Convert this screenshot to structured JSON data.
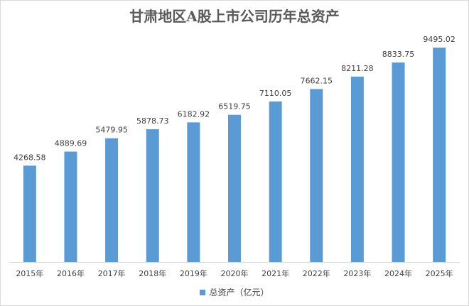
{
  "chart_data": {
    "type": "bar",
    "title": "甘肃地区A股上市公司历年总资产",
    "categories": [
      "2015年",
      "2016年",
      "2017年",
      "2018年",
      "2019年",
      "2020年",
      "2021年",
      "2022年",
      "2023年",
      "2024年",
      "2025年"
    ],
    "series": [
      {
        "name": "总资产（亿元）",
        "values": [
          4268.58,
          4889.69,
          5479.95,
          5878.73,
          6182.92,
          6519.75,
          7110.05,
          7662.15,
          8211.28,
          8833.75,
          9495.02
        ],
        "value_labels": [
          "4268.58",
          "4889.69",
          "5479.95",
          "5878.73",
          "6182.92",
          "6519.75",
          "7110.05",
          "7662.15",
          "8211.28",
          "8833.75",
          "9495.02"
        ],
        "color": "#5B9BD5"
      }
    ],
    "xlabel": "",
    "ylabel": "",
    "ylim": [
      0,
      10000
    ],
    "grid": false,
    "legend_position": "bottom"
  }
}
